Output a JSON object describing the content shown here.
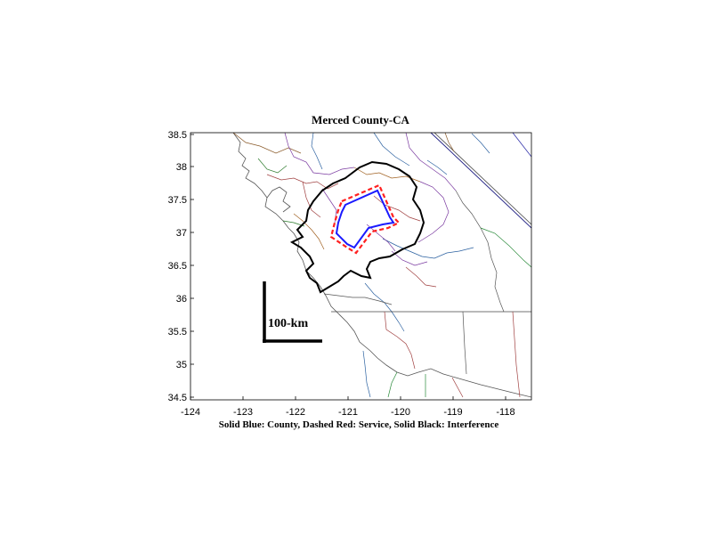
{
  "title": "Merced County-CA",
  "caption": "Solid Blue: County, Dashed Red: Service, Solid Black: Interference",
  "scale_bar_label": "100-km",
  "x_ticks": [
    "-124",
    "-123",
    "-122",
    "-121",
    "-120",
    "-119",
    "-118"
  ],
  "y_ticks": [
    "38.5",
    "38",
    "37.5",
    "37",
    "36.5",
    "36",
    "35.5",
    "35",
    "34.5"
  ],
  "colors": {
    "county": "#1a1aff",
    "service": "#ff2020",
    "interference": "#000000"
  }
}
